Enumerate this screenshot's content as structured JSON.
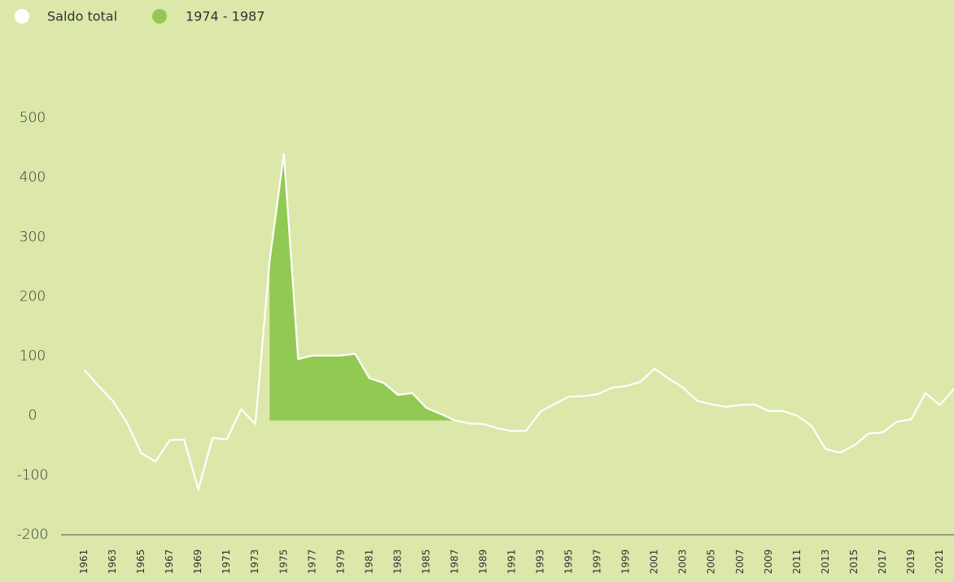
{
  "chart_data": {
    "type": "line",
    "x": [
      1961,
      1962,
      1963,
      1964,
      1965,
      1966,
      1967,
      1968,
      1969,
      1970,
      1971,
      1972,
      1973,
      1974,
      1975,
      1976,
      1977,
      1978,
      1979,
      1980,
      1981,
      1982,
      1983,
      1984,
      1985,
      1986,
      1987,
      1988,
      1989,
      1990,
      1991,
      1992,
      1993,
      1994,
      1995,
      1996,
      1997,
      1998,
      1999,
      2000,
      2001,
      2002,
      2003,
      2004,
      2005,
      2006,
      2007,
      2008,
      2009,
      2010,
      2011,
      2012,
      2013,
      2014,
      2015,
      2016,
      2017,
      2018,
      2019,
      2020,
      2021,
      2022
    ],
    "series": [
      {
        "name": "Saldo total",
        "color": "#ffffff",
        "values": [
          77,
          50,
          25,
          -12,
          -63,
          -77,
          -41,
          -40,
          -124,
          -37,
          -40,
          11,
          -14,
          260,
          440,
          95,
          101,
          101,
          101,
          104,
          63,
          55,
          35,
          38,
          13,
          3,
          -8,
          -13,
          -14,
          -21,
          -26,
          -25,
          7,
          20,
          32,
          33,
          36,
          47,
          50,
          57,
          79,
          62,
          47,
          25,
          19,
          15,
          18,
          19,
          8,
          8,
          0,
          -17,
          -56,
          -62,
          -50,
          -30,
          -28,
          -10,
          -6,
          38,
          18,
          45
        ]
      }
    ],
    "highlight": {
      "name": "1974 - 1987",
      "color": "#92c953",
      "from": 1974,
      "to": 1987
    },
    "xlim": [
      1959.2,
      2022
    ],
    "xticks": [
      1961,
      1963,
      1965,
      1967,
      1969,
      1971,
      1973,
      1975,
      1977,
      1979,
      1981,
      1983,
      1985,
      1987,
      1989,
      1991,
      1993,
      1995,
      1997,
      1999,
      2001,
      2003,
      2005,
      2007,
      2009,
      2011,
      2013,
      2015,
      2017,
      2019,
      2021
    ],
    "ylim": [
      -200,
      500
    ],
    "yticks": [
      -200,
      -100,
      0,
      100,
      200,
      300,
      400,
      500
    ],
    "grid": false
  }
}
